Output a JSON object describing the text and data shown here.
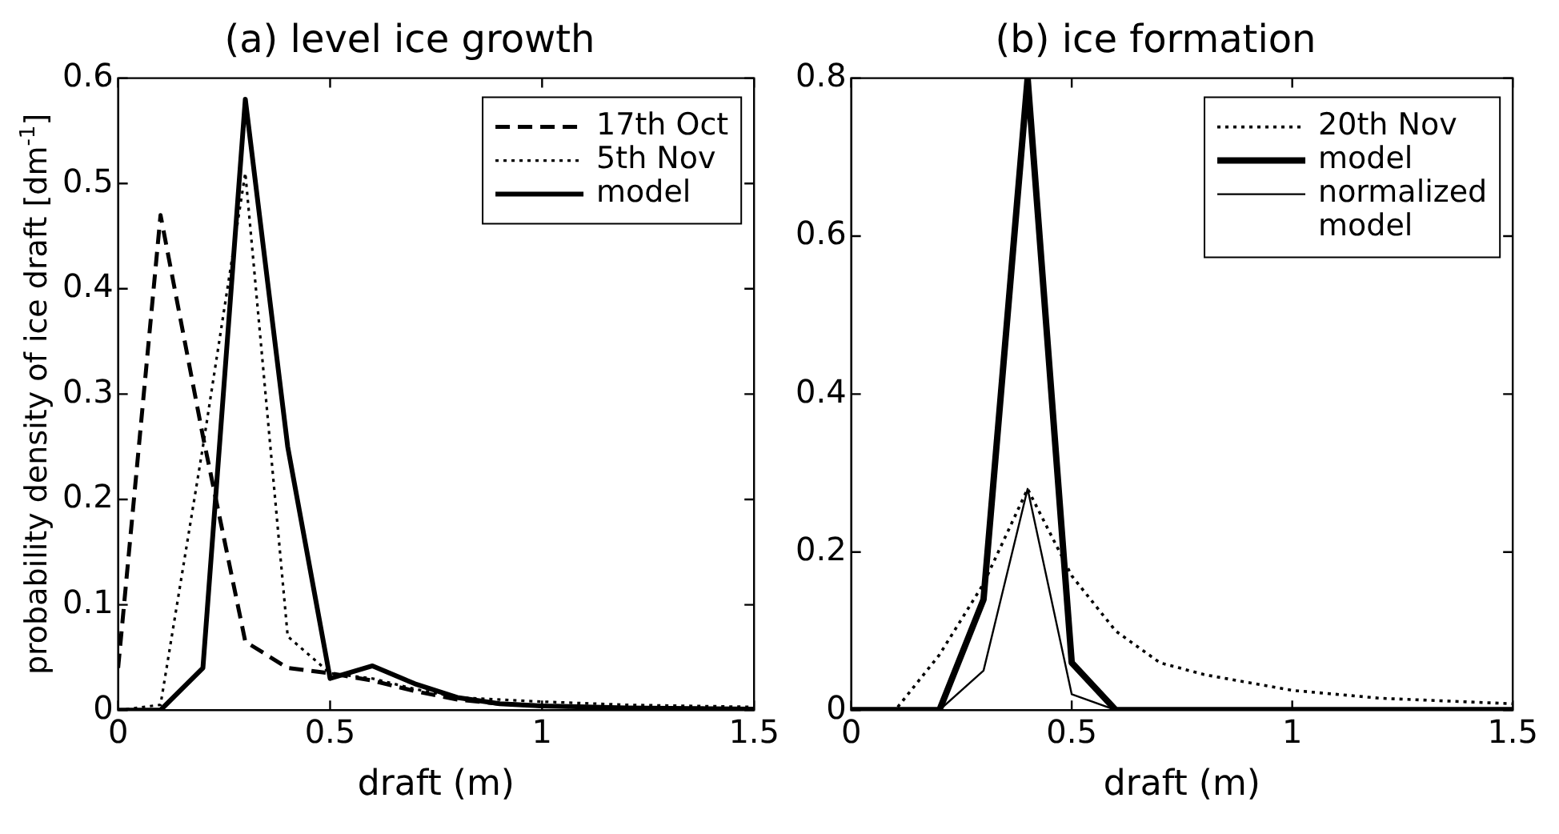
{
  "chart_data": [
    {
      "type": "line",
      "title": "(a) level ice growth",
      "xlabel": "draft (m)",
      "ylabel": "probability density of ice draft [dm$^{-1}$]",
      "xlim": [
        0,
        1.5
      ],
      "xticks": [
        0,
        0.5,
        1,
        1.5
      ],
      "ylim": [
        0,
        0.6
      ],
      "yticks": [
        0,
        0.1,
        0.2,
        0.3,
        0.4,
        0.5,
        0.6
      ],
      "legend": "top right",
      "marker": "none",
      "series": [
        {
          "name": "17th Oct",
          "color": "#000000",
          "line_style": "dashed",
          "x": [
            0,
            0.1,
            0.2,
            0.3,
            0.4,
            0.5,
            0.6,
            0.7,
            0.8,
            0.9,
            1.0,
            1.2,
            1.5
          ],
          "values": [
            0.04,
            0.47,
            0.26,
            0.065,
            0.04,
            0.035,
            0.028,
            0.018,
            0.01,
            0.006,
            0.004,
            0.002,
            0.001
          ]
        },
        {
          "name": "5th Nov",
          "color": "#000000",
          "line_style": "dotted",
          "x": [
            0,
            0.1,
            0.2,
            0.3,
            0.4,
            0.5,
            0.6,
            0.7,
            0.8,
            1.0,
            1.2,
            1.5
          ],
          "values": [
            0,
            0.005,
            0.25,
            0.51,
            0.07,
            0.035,
            0.03,
            0.02,
            0.012,
            0.008,
            0.005,
            0.003
          ]
        },
        {
          "name": "model",
          "color": "#000000",
          "line_style": "solid",
          "x": [
            0,
            0.1,
            0.2,
            0.3,
            0.4,
            0.5,
            0.6,
            0.7,
            0.8,
            0.9,
            1.0,
            1.2,
            1.5
          ],
          "values": [
            0,
            0,
            0.04,
            0.58,
            0.25,
            0.03,
            0.042,
            0.025,
            0.012,
            0.006,
            0.004,
            0.002,
            0.001
          ]
        }
      ]
    },
    {
      "type": "line",
      "title": "(b) ice formation",
      "xlabel": "draft (m)",
      "xlim": [
        0,
        1.5
      ],
      "xticks": [
        0,
        0.5,
        1,
        1.5
      ],
      "ylim": [
        0,
        0.8
      ],
      "yticks": [
        0,
        0.2,
        0.4,
        0.6,
        0.8
      ],
      "legend": "top right",
      "marker": "none",
      "series": [
        {
          "name": "20th Nov",
          "color": "#000000",
          "line_style": "dotted",
          "x": [
            0,
            0.1,
            0.2,
            0.3,
            0.4,
            0.5,
            0.6,
            0.7,
            0.8,
            0.9,
            1.0,
            1.2,
            1.5
          ],
          "values": [
            0,
            0,
            0.07,
            0.16,
            0.28,
            0.17,
            0.1,
            0.06,
            0.045,
            0.035,
            0.025,
            0.015,
            0.008
          ]
        },
        {
          "name": "model",
          "color": "#000000",
          "line_style": "solid",
          "x": [
            0,
            0.2,
            0.3,
            0.4,
            0.5,
            0.6,
            1.5
          ],
          "values": [
            0,
            0,
            0.14,
            0.8,
            0.06,
            0,
            0
          ]
        },
        {
          "name": "normalized model",
          "color": "#000000",
          "line_style": "solid",
          "x": [
            0,
            0.2,
            0.3,
            0.4,
            0.5,
            0.6,
            1.5
          ],
          "values": [
            0,
            0,
            0.05,
            0.28,
            0.02,
            0,
            0
          ]
        }
      ]
    }
  ]
}
